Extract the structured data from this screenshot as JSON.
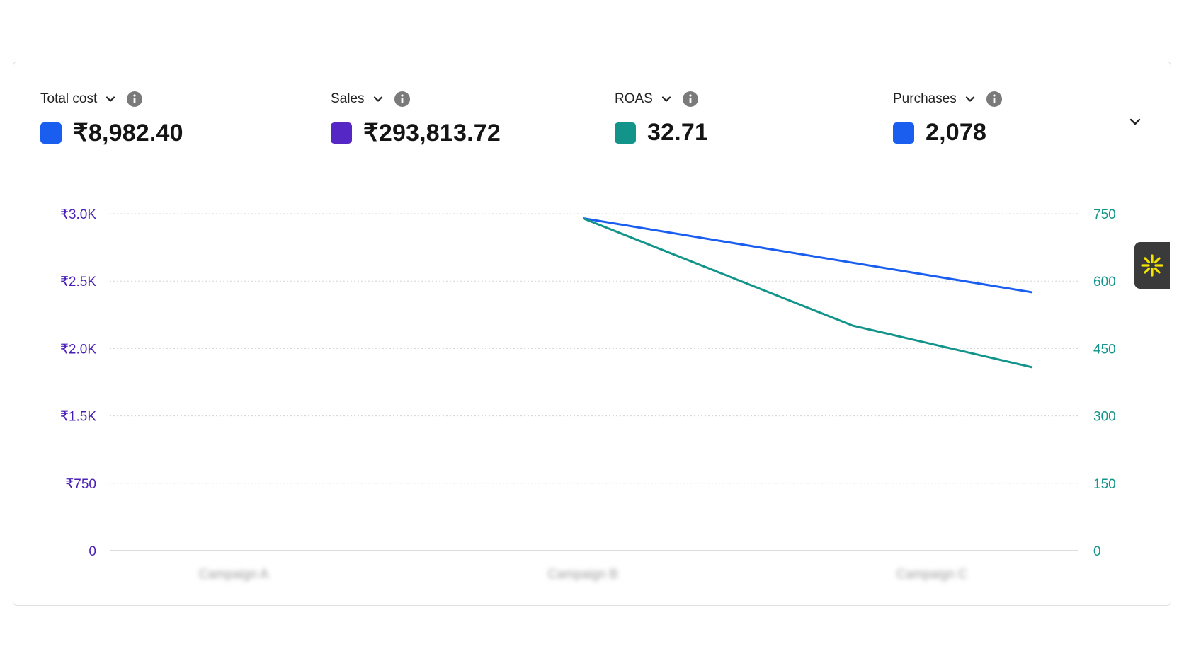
{
  "metrics": [
    {
      "label": "Total cost",
      "value": "₹8,982.40",
      "color": "#1a5ef0",
      "icon": "info-icon"
    },
    {
      "label": "Sales",
      "value": "₹293,813.72",
      "color": "#5527c4",
      "icon": "info-icon"
    },
    {
      "label": "ROAS",
      "value": "32.71",
      "color": "#12948a",
      "icon": "info-icon"
    },
    {
      "label": "Purchases",
      "value": "2,078",
      "color": "#1a5ef0",
      "icon": "info-icon"
    }
  ],
  "controls": {
    "expand_icon": "chevron-down-icon",
    "widget_icon": "sparkle-icon",
    "widget_color": "#f5e400"
  },
  "chart_data": {
    "type": "line",
    "categories": [
      "Campaign A",
      "Campaign B",
      "Campaign C"
    ],
    "y_left": {
      "ticks": [
        "0",
        "₹750",
        "₹1.5K",
        "₹2.0K",
        "₹2.5K",
        "₹3.0K"
      ],
      "color": "#4a1fb8"
    },
    "y_right": {
      "ticks": [
        "0",
        "150",
        "300",
        "450",
        "600",
        "750"
      ],
      "range": [
        0,
        750
      ],
      "color": "#12948a"
    },
    "grid": true,
    "series": [
      {
        "color": "#1a5ef0",
        "x": [
          1,
          2
        ],
        "values": [
          740,
          575
        ]
      },
      {
        "color": "#12948a",
        "x": [
          1,
          1.6,
          2
        ],
        "values": [
          740,
          501,
          408
        ]
      }
    ]
  }
}
